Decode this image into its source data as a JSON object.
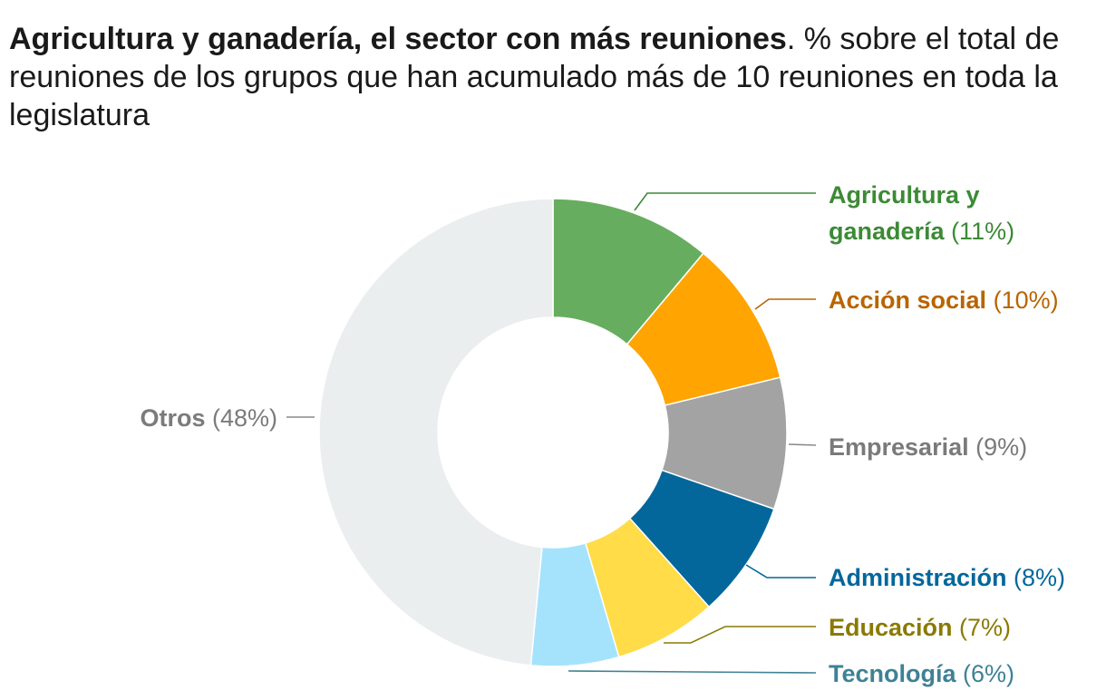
{
  "title": {
    "bold": "Agricultura y ganadería, el sector con más reuniones",
    "rest": ". % sobre el total de reuniones de los grupos que han acumulado más de 10 reuniones en toda la legislatura"
  },
  "chart_data": {
    "type": "pie",
    "variant": "donut",
    "title": "Agricultura y ganadería, el sector con más reuniones",
    "subtitle": "% sobre el total de reuniones de los grupos que han acumulado más de 10 reuniones en toda la legislatura",
    "unit": "%",
    "slices": [
      {
        "id": "agricultura",
        "label_lines": [
          "Agricultura y",
          "ganadería"
        ],
        "value": 11,
        "value_label": "(11%)",
        "color": "#66ad5f",
        "text_color": "#3c8a35",
        "line_color": "#3c8a35"
      },
      {
        "id": "accion-social",
        "label_lines": [
          "Acción social"
        ],
        "value": 10,
        "value_label": "(10%)",
        "color": "#ffa400",
        "text_color": "#b86500",
        "line_color": "#b86500"
      },
      {
        "id": "empresarial",
        "label_lines": [
          "Empresarial"
        ],
        "value": 9,
        "value_label": "(9%)",
        "color": "#a3a3a3",
        "text_color": "#7a7a7a",
        "line_color": "#8a8a8a"
      },
      {
        "id": "administracion",
        "label_lines": [
          "Administración"
        ],
        "value": 8,
        "value_label": "(8%)",
        "color": "#03679b",
        "text_color": "#03679b",
        "line_color": "#03679b"
      },
      {
        "id": "educacion",
        "label_lines": [
          "Educación"
        ],
        "value": 7,
        "value_label": "(7%)",
        "color": "#ffdc48",
        "text_color": "#8a7a05",
        "line_color": "#8a7a05"
      },
      {
        "id": "tecnologia",
        "label_lines": [
          "Tecnología"
        ],
        "value": 6,
        "value_label": "(6%)",
        "color": "#a5e3fd",
        "text_color": "#3f8195",
        "line_color": "#3f8195"
      },
      {
        "id": "otros",
        "label_lines": [
          "Otros"
        ],
        "value": 48,
        "value_label": "(48%)",
        "color": "#ebeeef",
        "text_color": "#7b7b7b",
        "line_color": "#8a8a8a"
      }
    ]
  }
}
